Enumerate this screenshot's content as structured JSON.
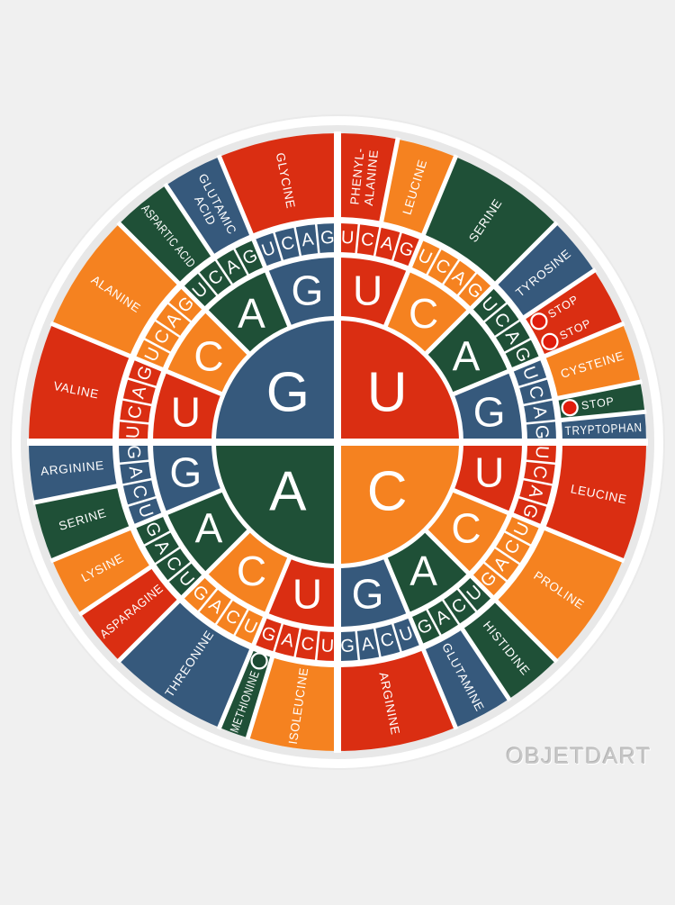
{
  "page": {
    "watermark": "OBJETDART",
    "background": "#f0f0f0"
  },
  "palette": {
    "red": "#da2e12",
    "orange": "#f58220",
    "green": "#1f5037",
    "blue": "#36597c",
    "white": "#ffffff",
    "plate": "#ffffff",
    "plate_shadow": "#e8e8e8",
    "stop_dot": "#e01c0c",
    "start_dot": "#1d4a33",
    "watermark_color": "#c8c8c8"
  },
  "wheel": {
    "base_order_clockwise_from_top": [
      "U",
      "C",
      "A",
      "G"
    ],
    "base_colors": {
      "U": "red",
      "C": "orange",
      "A": "green",
      "G": "blue"
    },
    "center_letters": [
      {
        "letter": "U",
        "position": "top-right",
        "color": "red"
      },
      {
        "letter": "C",
        "position": "bottom-right",
        "color": "orange"
      },
      {
        "letter": "A",
        "position": "bottom-left",
        "color": "green"
      },
      {
        "letter": "G",
        "position": "top-left",
        "color": "blue"
      }
    ],
    "second_letter_order": [
      "U",
      "C",
      "A",
      "G"
    ],
    "third_letter_order": [
      "U",
      "C",
      "A",
      "G"
    ],
    "amino_acids": [
      {
        "name": "PHENYLALANINE",
        "lines": [
          "PHENYL-",
          "ALANINE"
        ],
        "codons": 2,
        "color": "red"
      },
      {
        "name": "LEUCINE",
        "lines": [
          "LEUCINE"
        ],
        "codons": 2,
        "color": "orange"
      },
      {
        "name": "SERINE",
        "lines": [
          "SERINE"
        ],
        "codons": 4,
        "color": "green"
      },
      {
        "name": "TYROSINE",
        "lines": [
          "TYROSINE"
        ],
        "codons": 2,
        "color": "blue"
      },
      {
        "name": "STOP",
        "lines": [
          "STOP"
        ],
        "codons": 2,
        "color": "red",
        "dot": "stop",
        "rows": 2
      },
      {
        "name": "CYSTEINE",
        "lines": [
          "CYSTEINE"
        ],
        "codons": 2,
        "color": "orange"
      },
      {
        "name": "STOP",
        "lines": [
          "STOP"
        ],
        "codons": 1,
        "color": "green",
        "dot": "stop"
      },
      {
        "name": "TRYPTOPHAN",
        "lines": [
          "TRYPTOPHAN"
        ],
        "codons": 1,
        "color": "blue"
      },
      {
        "name": "LEUCINE",
        "lines": [
          "LEUCINE"
        ],
        "codons": 4,
        "color": "red"
      },
      {
        "name": "PROLINE",
        "lines": [
          "PROLINE"
        ],
        "codons": 4,
        "color": "orange"
      },
      {
        "name": "HISTIDINE",
        "lines": [
          "HISTIDINE"
        ],
        "codons": 2,
        "color": "green"
      },
      {
        "name": "GLUTAMINE",
        "lines": [
          "GLUTAMINE"
        ],
        "codons": 2,
        "color": "blue"
      },
      {
        "name": "ARGININE",
        "lines": [
          "ARGININE"
        ],
        "codons": 4,
        "color": "red"
      },
      {
        "name": "ISOLEUCINE",
        "lines": [
          "ISOLEUCINE"
        ],
        "codons": 3,
        "color": "orange"
      },
      {
        "name": "METHIONINE",
        "lines": [
          "METHIONINE"
        ],
        "codons": 1,
        "color": "green",
        "dot": "start"
      },
      {
        "name": "THREONINE",
        "lines": [
          "THREONINE"
        ],
        "codons": 4,
        "color": "blue"
      },
      {
        "name": "ASPARAGINE",
        "lines": [
          "ASPARAGINE"
        ],
        "codons": 2,
        "color": "red"
      },
      {
        "name": "LYSINE",
        "lines": [
          "LYSINE"
        ],
        "codons": 2,
        "color": "orange"
      },
      {
        "name": "SERINE",
        "lines": [
          "SERINE"
        ],
        "codons": 2,
        "color": "green"
      },
      {
        "name": "ARGININE",
        "lines": [
          "ARGININE"
        ],
        "codons": 2,
        "color": "blue"
      },
      {
        "name": "VALINE",
        "lines": [
          "VALINE"
        ],
        "codons": 4,
        "color": "red"
      },
      {
        "name": "ALANINE",
        "lines": [
          "ALANINE"
        ],
        "codons": 4,
        "color": "orange"
      },
      {
        "name": "ASPARTIC ACID",
        "lines": [
          "ASPARTIC ACID"
        ],
        "codons": 2,
        "color": "green"
      },
      {
        "name": "GLUTAMIC ACID",
        "lines": [
          "GLUTAMIC",
          "ACID"
        ],
        "codons": 2,
        "color": "blue"
      },
      {
        "name": "GLYCINE",
        "lines": [
          "GLYCINE"
        ],
        "codons": 4,
        "color": "red"
      }
    ]
  }
}
